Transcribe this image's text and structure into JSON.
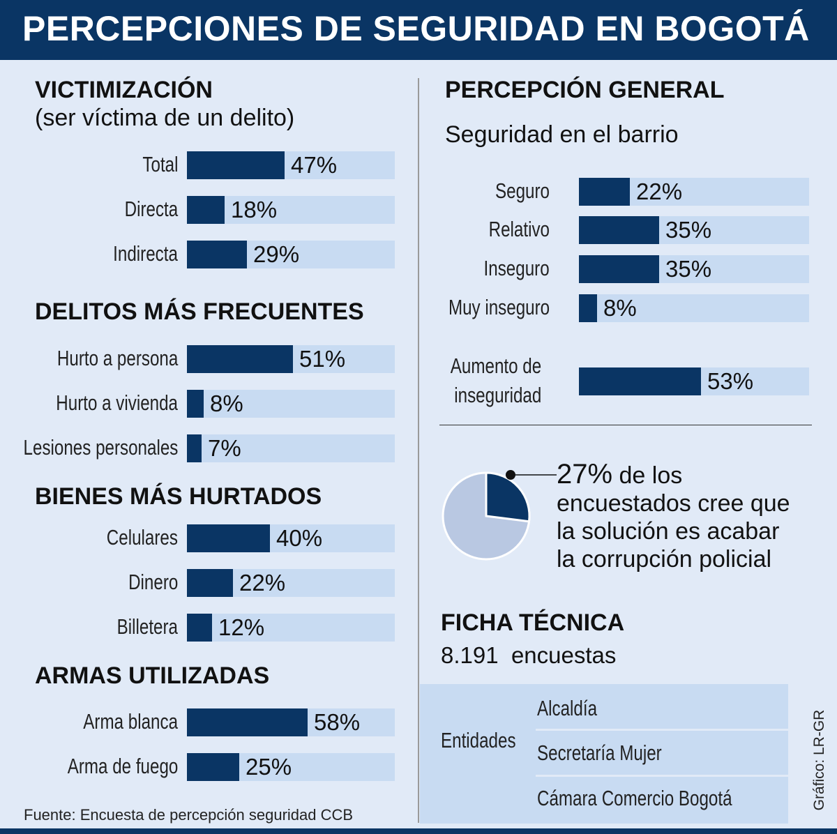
{
  "title": "PERCEPCIONES DE SEGURIDAD EN BOGOTÁ",
  "source": "Fuente: Encuesta de percepción seguridad CCB",
  "credit": "Gráfico: LR-GR",
  "colors": {
    "bar": "#0a3564",
    "track": "#c8dbf2",
    "background": "#e1eaf7",
    "pie_light": "#b9c8e2"
  },
  "chart_data": [
    {
      "type": "bar",
      "title": "VICTIMIZACIÓN",
      "subtitle": "(ser víctima de un delito)",
      "categories": [
        "Total",
        "Directa",
        "Indirecta"
      ],
      "values": [
        47,
        18,
        29
      ],
      "unit": "%",
      "xlim": [
        0,
        100
      ]
    },
    {
      "type": "bar",
      "title": "DELITOS MÁS FRECUENTES",
      "categories": [
        "Hurto a persona",
        "Hurto a vivienda",
        "Lesiones personales"
      ],
      "values": [
        51,
        8,
        7
      ],
      "unit": "%",
      "xlim": [
        0,
        100
      ]
    },
    {
      "type": "bar",
      "title": "BIENES MÁS HURTADOS",
      "categories": [
        "Celulares",
        "Dinero",
        "Billetera"
      ],
      "values": [
        40,
        22,
        12
      ],
      "unit": "%",
      "xlim": [
        0,
        100
      ]
    },
    {
      "type": "bar",
      "title": "ARMAS UTILIZADAS",
      "categories": [
        "Arma blanca",
        "Arma de fuego"
      ],
      "values": [
        58,
        25
      ],
      "unit": "%",
      "xlim": [
        0,
        100
      ]
    },
    {
      "type": "bar",
      "title": "PERCEPCIÓN GENERAL",
      "subtitle": "Seguridad en el barrio",
      "categories": [
        "Seguro",
        "Relativo",
        "Inseguro",
        "Muy inseguro"
      ],
      "values": [
        22,
        35,
        35,
        8
      ],
      "unit": "%",
      "xlim": [
        0,
        100
      ]
    },
    {
      "type": "bar",
      "categories": [
        "Aumento de inseguridad"
      ],
      "category_lines": [
        [
          "Aumento de",
          "inseguridad"
        ]
      ],
      "values": [
        53
      ],
      "unit": "%",
      "xlim": [
        0,
        100
      ]
    },
    {
      "type": "pie",
      "values": [
        27,
        73
      ],
      "highlight": 27,
      "callout": {
        "value": "27%",
        "text": [
          "de los",
          "encuestados cree que",
          "la solución es acabar",
          "la corrupción policial"
        ]
      }
    }
  ],
  "ficha": {
    "title": "FICHA TÉCNICA",
    "count": "8.191",
    "count_label": "encuestas",
    "entities_label": "Entidades",
    "entities": [
      "Alcaldía",
      "Secretaría Mujer",
      "Cámara Comercio Bogotá"
    ]
  }
}
